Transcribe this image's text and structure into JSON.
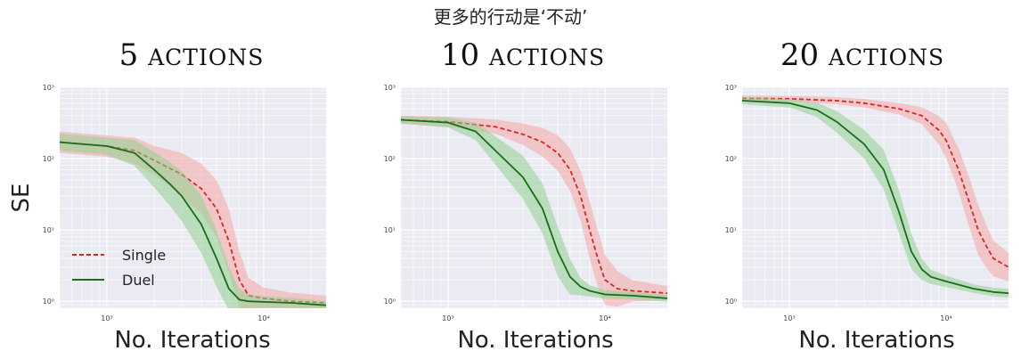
{
  "figure_title": "更多的行动是‘不动’",
  "colors": {
    "single_line": "#d62728",
    "single_band": "#f4a5a5",
    "duel_line": "#1a6b1a",
    "duel_band": "#8fd18f",
    "plot_bg": "#eaeaf2",
    "grid": "#ffffff"
  },
  "chart_data": [
    {
      "type": "line",
      "title_number": "5",
      "title_word": "ACTIONS",
      "xlabel": "No. Iterations",
      "ylabel": "SE",
      "xscale": "log",
      "yscale": "log",
      "xlim": [
        500,
        25000
      ],
      "ylim": [
        0.8,
        1000
      ],
      "xticks": [
        {
          "value": 1000,
          "label": "10³"
        },
        {
          "value": 10000,
          "label": "10⁴"
        }
      ],
      "yticks": [
        {
          "value": 1,
          "label": "10⁰"
        },
        {
          "value": 10,
          "label": "10¹"
        },
        {
          "value": 100,
          "label": "10²"
        },
        {
          "value": 1000,
          "label": "10³"
        }
      ],
      "grid": true,
      "legend": {
        "visible": true,
        "position": "lower-left"
      },
      "series": [
        {
          "name": "Single",
          "style": "dashed",
          "x": [
            500,
            1000,
            1500,
            2000,
            3000,
            4000,
            5000,
            6000,
            7000,
            8000,
            10000,
            15000,
            25000
          ],
          "y": [
            170,
            150,
            130,
            95,
            60,
            38,
            20,
            7,
            2,
            1.2,
            1.1,
            1.0,
            0.95
          ],
          "band": [
            0.15,
            0.15,
            0.18,
            0.2,
            0.3,
            0.35,
            0.4,
            0.45,
            0.4,
            0.25,
            0.15,
            0.12,
            0.1
          ]
        },
        {
          "name": "Duel",
          "style": "solid",
          "x": [
            500,
            1000,
            1500,
            2000,
            2500,
            3000,
            4000,
            5000,
            6000,
            7000,
            8000,
            10000,
            15000,
            25000
          ],
          "y": [
            170,
            150,
            120,
            70,
            45,
            30,
            12,
            4,
            1.5,
            1.05,
            1.0,
            0.98,
            0.95,
            0.88
          ],
          "band": [
            0.12,
            0.12,
            0.18,
            0.25,
            0.3,
            0.35,
            0.4,
            0.4,
            0.3,
            0.15,
            0.1,
            0.08,
            0.07,
            0.06
          ]
        }
      ]
    },
    {
      "type": "line",
      "title_number": "10",
      "title_word": "ACTIONS",
      "xlabel": "No. Iterations",
      "ylabel": "",
      "xscale": "log",
      "yscale": "log",
      "xlim": [
        500,
        25000
      ],
      "ylim": [
        0.8,
        1000
      ],
      "xticks": [
        {
          "value": 1000,
          "label": "10³"
        },
        {
          "value": 10000,
          "label": "10⁴"
        }
      ],
      "yticks": [
        {
          "value": 1,
          "label": "10⁰"
        },
        {
          "value": 10,
          "label": "10¹"
        },
        {
          "value": 100,
          "label": "10²"
        },
        {
          "value": 1000,
          "label": "10³"
        }
      ],
      "grid": true,
      "legend": {
        "visible": false,
        "position": ""
      },
      "series": [
        {
          "name": "Single",
          "style": "dashed",
          "x": [
            500,
            1000,
            2000,
            3000,
            4000,
            5000,
            6000,
            7000,
            8000,
            9000,
            10000,
            12000,
            15000,
            25000
          ],
          "y": [
            350,
            330,
            280,
            220,
            170,
            120,
            70,
            30,
            10,
            4,
            2,
            1.5,
            1.4,
            1.3
          ],
          "band": [
            0.06,
            0.07,
            0.1,
            0.15,
            0.2,
            0.25,
            0.3,
            0.35,
            0.4,
            0.4,
            0.35,
            0.25,
            0.15,
            0.1
          ]
        },
        {
          "name": "Duel",
          "style": "solid",
          "x": [
            500,
            1000,
            1500,
            2000,
            3000,
            4000,
            5000,
            6000,
            7000,
            8000,
            10000,
            15000,
            25000
          ],
          "y": [
            350,
            320,
            240,
            130,
            55,
            20,
            5,
            2.2,
            1.6,
            1.4,
            1.25,
            1.2,
            1.1
          ],
          "band": [
            0.05,
            0.07,
            0.12,
            0.2,
            0.3,
            0.35,
            0.35,
            0.25,
            0.12,
            0.08,
            0.06,
            0.05,
            0.05
          ]
        }
      ]
    },
    {
      "type": "line",
      "title_number": "20",
      "title_word": "ACTIONS",
      "xlabel": "No. Iterations",
      "ylabel": "",
      "xscale": "log",
      "yscale": "log",
      "xlim": [
        500,
        25000
      ],
      "ylim": [
        0.8,
        1000
      ],
      "xticks": [
        {
          "value": 1000,
          "label": "10³"
        },
        {
          "value": 10000,
          "label": "10⁴"
        }
      ],
      "yticks": [
        {
          "value": 1,
          "label": "10⁰"
        },
        {
          "value": 10,
          "label": "10¹"
        },
        {
          "value": 100,
          "label": "10²"
        },
        {
          "value": 1000,
          "label": "10³"
        }
      ],
      "grid": true,
      "legend": {
        "visible": false,
        "position": ""
      },
      "series": [
        {
          "name": "Single",
          "style": "dashed",
          "x": [
            500,
            1000,
            2000,
            3000,
            5000,
            7000,
            9000,
            10000,
            12000,
            14000,
            16000,
            18000,
            20000,
            25000
          ],
          "y": [
            700,
            690,
            650,
            600,
            500,
            400,
            250,
            180,
            70,
            25,
            10,
            6,
            4,
            3
          ],
          "band": [
            0.04,
            0.04,
            0.05,
            0.06,
            0.08,
            0.12,
            0.2,
            0.25,
            0.3,
            0.35,
            0.35,
            0.3,
            0.25,
            0.2
          ]
        },
        {
          "name": "Duel",
          "style": "solid",
          "x": [
            500,
            1000,
            1500,
            2000,
            3000,
            4000,
            5000,
            6000,
            7000,
            8000,
            10000,
            15000,
            20000,
            25000
          ],
          "y": [
            650,
            600,
            480,
            330,
            160,
            70,
            18,
            5,
            2.8,
            2.2,
            1.9,
            1.5,
            1.35,
            1.3
          ],
          "band": [
            0.05,
            0.06,
            0.1,
            0.15,
            0.2,
            0.28,
            0.3,
            0.25,
            0.15,
            0.1,
            0.08,
            0.06,
            0.06,
            0.06
          ]
        }
      ]
    }
  ]
}
